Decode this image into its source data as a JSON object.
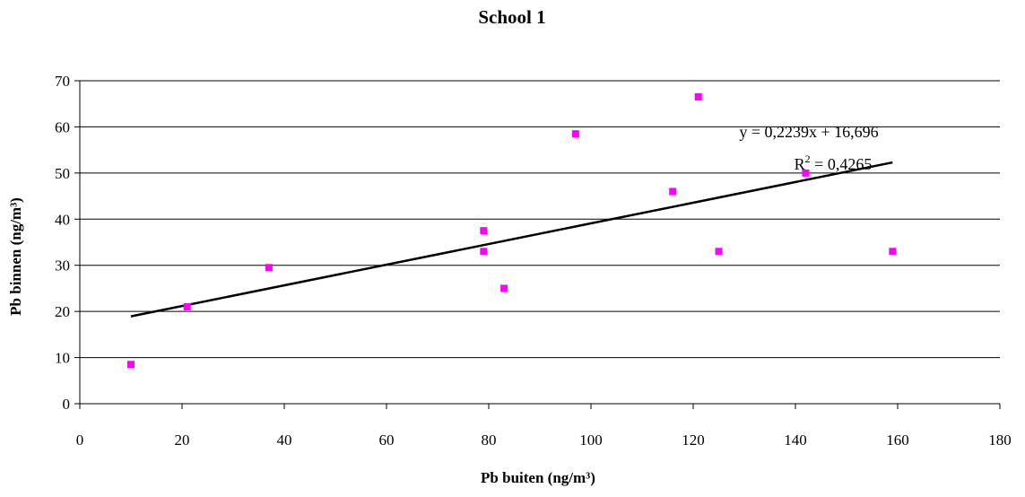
{
  "chart_data": {
    "type": "scatter",
    "title": "School 1",
    "xlabel": "Pb buiten (ng/m³)",
    "ylabel": "Pb binnen (ng/m³)",
    "xlim": [
      0,
      180
    ],
    "ylim": [
      0,
      70
    ],
    "xticks": [
      "0",
      "20",
      "40",
      "60",
      "80",
      "100",
      "120",
      "140",
      "160",
      "180"
    ],
    "yticks": [
      "0",
      "10",
      "20",
      "30",
      "40",
      "50",
      "60",
      "70"
    ],
    "grid": "horizontal",
    "legend": "none",
    "series": [
      {
        "color": "#ff00ff",
        "marker": "square",
        "x": [
          10,
          21,
          37,
          79,
          79,
          83,
          97,
          116,
          121,
          125,
          142,
          159
        ],
        "y": [
          8.5,
          21,
          29.5,
          37.5,
          33,
          25,
          58.5,
          46,
          66.5,
          33,
          50,
          33
        ]
      }
    ],
    "trendline": {
      "type": "linear",
      "slope": 0.2239,
      "intercept": 16.696,
      "x_range": [
        10,
        159
      ],
      "color": "#000000"
    },
    "annotations": {
      "equation": "y = 0,2239x + 16,696",
      "r2_prefix": "R",
      "r2_superscript": "2",
      "r2_value": " = 0,4265"
    }
  }
}
